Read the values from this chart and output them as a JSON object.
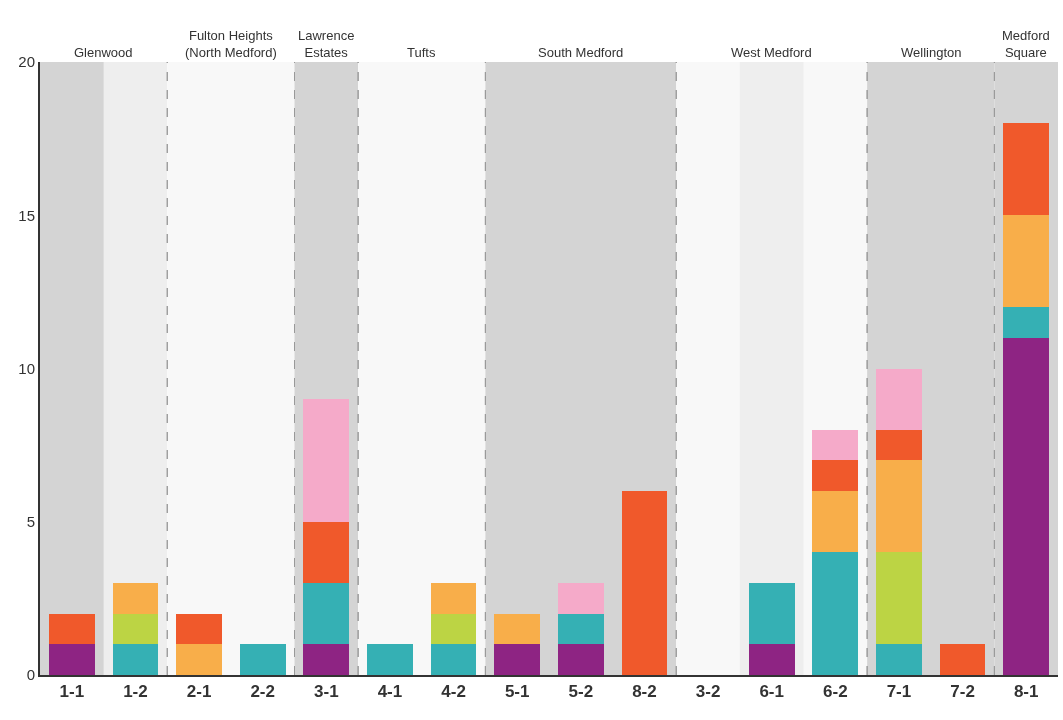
{
  "chart_data": {
    "type": "bar",
    "stacked": true,
    "categories": [
      "1-1",
      "1-2",
      "2-1",
      "2-2",
      "3-1",
      "4-1",
      "4-2",
      "5-1",
      "5-2",
      "8-2",
      "3-2",
      "6-1",
      "6-2",
      "7-1",
      "7-2",
      "8-1"
    ],
    "series": [
      {
        "color": "#8e2483",
        "values": [
          1,
          0,
          0,
          0,
          1,
          0,
          0,
          1,
          1,
          0,
          0,
          1,
          0,
          0,
          0,
          11
        ]
      },
      {
        "color": "#35b0b4",
        "values": [
          0,
          1,
          0,
          1,
          2,
          1,
          1,
          0,
          1,
          0,
          0,
          2,
          4,
          1,
          0,
          1
        ]
      },
      {
        "color": "#bcd444",
        "values": [
          0,
          1,
          0,
          0,
          0,
          0,
          1,
          0,
          0,
          0,
          0,
          0,
          0,
          3,
          0,
          0
        ]
      },
      {
        "color": "#f8ae4a",
        "values": [
          0,
          1,
          1,
          0,
          0,
          0,
          1,
          1,
          0,
          0,
          0,
          0,
          2,
          3,
          0,
          3
        ]
      },
      {
        "color": "#f0592b",
        "values": [
          1,
          0,
          1,
          0,
          2,
          0,
          0,
          0,
          0,
          6,
          0,
          0,
          1,
          1,
          1,
          3
        ]
      },
      {
        "color": "#f5aac9",
        "values": [
          0,
          0,
          0,
          0,
          4,
          0,
          0,
          0,
          1,
          0,
          0,
          0,
          1,
          2,
          0,
          0
        ]
      }
    ],
    "ylim": [
      0,
      20
    ],
    "yticks": [
      0,
      5,
      10,
      15,
      20
    ],
    "grid": false,
    "legend": false,
    "bands": [
      {
        "axis": "x",
        "from": "1-1",
        "to": "1-2",
        "label": "Glenwood",
        "color": "#eeeeee"
      },
      {
        "axis": "x",
        "from": "2-1",
        "to": "2-2",
        "label": "Fulton Heights\n(North Medford)",
        "color": "#f8f8f8"
      },
      {
        "axis": "x",
        "from": "3-1",
        "to": "3-1",
        "label": "Lawrence\nEstates",
        "color": "#d4d4d4"
      },
      {
        "axis": "x",
        "from": "4-1",
        "to": "4-2",
        "label": "Tufts",
        "color": "#f8f8f8"
      },
      {
        "axis": "x",
        "from": "5-1",
        "to": "8-2",
        "label": "South Medford",
        "color": "#d4d4d4"
      },
      {
        "axis": "x",
        "from": "3-2",
        "to": "6-2",
        "label": "West Medford",
        "color": "#f8f8f8"
      },
      {
        "axis": "x",
        "from": "7-1",
        "to": "7-2",
        "label": "Wellington",
        "color": "#d4d4d4"
      },
      {
        "axis": "x",
        "from": "8-1",
        "to": "8-1",
        "label": "Medford\nSquare",
        "color": "#d4d4d4"
      },
      {
        "axis": "x",
        "from": "1-1",
        "to": "1-1",
        "color": "#d4d4d4"
      },
      {
        "axis": "x",
        "from": "6-1",
        "to": "6-1",
        "color": "#eeeeee"
      }
    ]
  }
}
